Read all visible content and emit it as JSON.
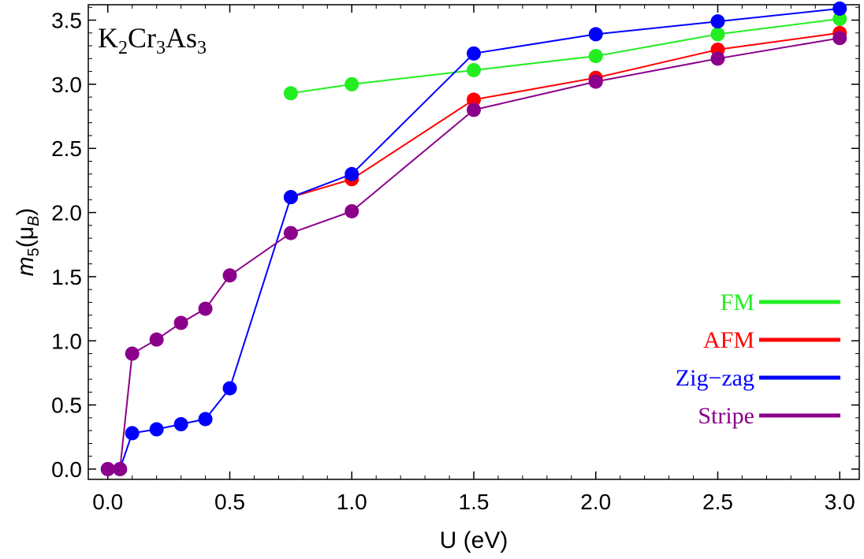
{
  "chart_data": {
    "type": "line",
    "title": "",
    "annotation": {
      "base": "K",
      "sub1": "2",
      "mid1": "Cr",
      "sub2": "3",
      "mid2": "As",
      "sub3": "3",
      "plain": "K2Cr3As3"
    },
    "xlabel": "U (eV)",
    "ylabel": {
      "m": "m",
      "sub5": "5",
      "open": "(μ",
      "subB": "B",
      "close": ")",
      "plain": "m5(μB)"
    },
    "xlim": [
      -0.08,
      3.08
    ],
    "ylim": [
      -0.08,
      3.62
    ],
    "xticks": [
      0.0,
      0.5,
      1.0,
      1.5,
      2.0,
      2.5,
      3.0
    ],
    "xtick_labels": [
      "0.0",
      "0.5",
      "1.0",
      "1.5",
      "2.0",
      "2.5",
      "3.0"
    ],
    "yticks": [
      0.0,
      0.5,
      1.0,
      1.5,
      2.0,
      2.5,
      3.0,
      3.5
    ],
    "ytick_labels": [
      "0.0",
      "0.5",
      "1.0",
      "1.5",
      "2.0",
      "2.5",
      "3.0",
      "3.5"
    ],
    "grid": false,
    "legend_position": "lower-right",
    "series": [
      {
        "name": "FM",
        "color": "#22ee22",
        "x": [
          0.75,
          1.0,
          1.5,
          2.0,
          2.5,
          3.0
        ],
        "y": [
          2.93,
          3.0,
          3.11,
          3.22,
          3.39,
          3.51
        ]
      },
      {
        "name": "AFM",
        "color": "#ff0000",
        "x": [
          0.75,
          1.0,
          1.5,
          2.0,
          2.5,
          3.0
        ],
        "y": [
          2.12,
          2.26,
          2.88,
          3.05,
          3.27,
          3.4
        ]
      },
      {
        "name": "Zig-zag",
        "color": "#0000ff",
        "x": [
          0.0,
          0.05,
          0.1,
          0.2,
          0.3,
          0.4,
          0.5,
          0.75,
          1.0,
          1.5,
          2.0,
          2.5,
          3.0
        ],
        "y": [
          0.0,
          0.0,
          0.28,
          0.31,
          0.35,
          0.39,
          0.63,
          2.12,
          2.3,
          3.24,
          3.39,
          3.49,
          3.59
        ]
      },
      {
        "name": "Stripe",
        "color": "#8b008b",
        "x": [
          0.0,
          0.05,
          0.1,
          0.2,
          0.3,
          0.4,
          0.5,
          0.75,
          1.0,
          1.5,
          2.0,
          2.5,
          3.0
        ],
        "y": [
          0.0,
          0.0,
          0.9,
          1.01,
          1.14,
          1.25,
          1.51,
          1.84,
          2.01,
          2.8,
          3.02,
          3.2,
          3.36
        ]
      }
    ],
    "legend": [
      {
        "label": "FM",
        "color": "#22ee22"
      },
      {
        "label": "AFM",
        "color": "#ff0000"
      },
      {
        "label": "Zig−zag",
        "color": "#0000ff"
      },
      {
        "label": "Stripe",
        "color": "#8b008b"
      }
    ]
  }
}
